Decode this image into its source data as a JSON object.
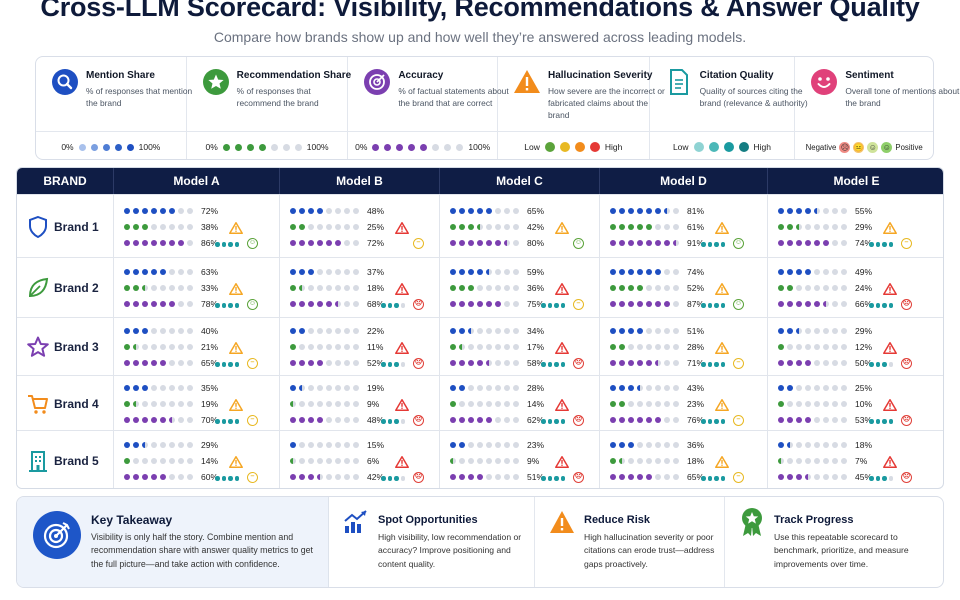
{
  "title": "Cross-LLM Scorecard: Visibility, Recommendations & Answer Quality",
  "subtitle": "Compare how brands show up and how well they’re answered across leading models.",
  "colors": {
    "navy": "#0f1d45",
    "mention": "#1e4fc2",
    "recommendation": "#3d9a3d",
    "accuracy": "#7b3fb0",
    "hallucination_high": "#e53935",
    "hallucination_mid": "#f5a623",
    "citation": "#1a9aa0",
    "sentiment_positive": "#5ba33a",
    "sentiment_neutral": "#e8b923",
    "sentiment_negative": "#e0413a",
    "empty_dot": "#d7dbe3"
  },
  "legend": [
    {
      "key": "mention",
      "icon": "search-icon",
      "title": "Mention Share",
      "desc": "% of responses that mention the brand",
      "scale_low": "0%",
      "scale_high": "100%"
    },
    {
      "key": "recommendation",
      "icon": "star-badge-icon",
      "title": "Recommendation Share",
      "desc": "% of responses that recommend the brand",
      "scale_low": "0%",
      "scale_high": "100%"
    },
    {
      "key": "accuracy",
      "icon": "target-icon",
      "title": "Accuracy",
      "desc": "% of factual statements about the brand that are correct",
      "scale_low": "0%",
      "scale_high": "100%"
    },
    {
      "key": "hallucination",
      "icon": "warning-icon",
      "title": "Hallucination Severity",
      "desc": "How severe are the incorrect or fabricated claims about the brand",
      "scale_low": "Low",
      "scale_high": "High"
    },
    {
      "key": "citation",
      "icon": "document-icon",
      "title": "Citation Quality",
      "desc": "Quality of sources citing the brand (relevance & authority)",
      "scale_low": "Low",
      "scale_high": "High"
    },
    {
      "key": "sentiment",
      "icon": "smiley-icon",
      "title": "Sentiment",
      "desc": "Overall tone of mentions about the brand",
      "scale_low": "Negative",
      "scale_high": "Positive"
    }
  ],
  "table": {
    "brand_header": "BRAND",
    "models": [
      "Model A",
      "Model B",
      "Model C",
      "Model D",
      "Model E"
    ],
    "brands": [
      {
        "name": "Brand 1",
        "icon": "shield-icon",
        "color": "#1e4fc2",
        "cells": [
          {
            "mention": "72%",
            "recommendation": "38%",
            "accuracy": "86%",
            "hallucination": "mid",
            "citation": 4,
            "sentiment": "positive"
          },
          {
            "mention": "48%",
            "recommendation": "25%",
            "accuracy": "72%",
            "hallucination": "high",
            "citation": 0,
            "sentiment": "neutral"
          },
          {
            "mention": "65%",
            "recommendation": "42%",
            "accuracy": "80%",
            "hallucination": "mid",
            "citation": 0,
            "sentiment": "positive"
          },
          {
            "mention": "81%",
            "recommendation": "61%",
            "accuracy": "91%",
            "hallucination": "mid",
            "citation": 4,
            "sentiment": "positive"
          },
          {
            "mention": "55%",
            "recommendation": "29%",
            "accuracy": "74%",
            "hallucination": "mid",
            "citation": 4,
            "sentiment": "neutral"
          }
        ]
      },
      {
        "name": "Brand 2",
        "icon": "leaf-icon",
        "color": "#3d9a3d",
        "cells": [
          {
            "mention": "63%",
            "recommendation": "33%",
            "accuracy": "78%",
            "hallucination": "mid",
            "citation": 4,
            "sentiment": "positive"
          },
          {
            "mention": "37%",
            "recommendation": "18%",
            "accuracy": "68%",
            "hallucination": "high",
            "citation": 3,
            "sentiment": "negative"
          },
          {
            "mention": "59%",
            "recommendation": "36%",
            "accuracy": "75%",
            "hallucination": "high",
            "citation": 4,
            "sentiment": "neutral"
          },
          {
            "mention": "74%",
            "recommendation": "52%",
            "accuracy": "87%",
            "hallucination": "mid",
            "citation": 4,
            "sentiment": "positive"
          },
          {
            "mention": "49%",
            "recommendation": "24%",
            "accuracy": "66%",
            "hallucination": "high",
            "citation": 4,
            "sentiment": "negative"
          }
        ]
      },
      {
        "name": "Brand 3",
        "icon": "star-icon",
        "color": "#7b3fb0",
        "cells": [
          {
            "mention": "40%",
            "recommendation": "21%",
            "accuracy": "65%",
            "hallucination": "mid",
            "citation": 4,
            "sentiment": "neutral"
          },
          {
            "mention": "22%",
            "recommendation": "11%",
            "accuracy": "52%",
            "hallucination": "high",
            "citation": 3,
            "sentiment": "negative"
          },
          {
            "mention": "34%",
            "recommendation": "17%",
            "accuracy": "58%",
            "hallucination": "high",
            "citation": 4,
            "sentiment": "negative"
          },
          {
            "mention": "51%",
            "recommendation": "28%",
            "accuracy": "71%",
            "hallucination": "mid",
            "citation": 4,
            "sentiment": "neutral"
          },
          {
            "mention": "29%",
            "recommendation": "12%",
            "accuracy": "50%",
            "hallucination": "high",
            "citation": 3,
            "sentiment": "negative"
          }
        ]
      },
      {
        "name": "Brand 4",
        "icon": "cart-icon",
        "color": "#f28c1c",
        "cells": [
          {
            "mention": "35%",
            "recommendation": "19%",
            "accuracy": "70%",
            "hallucination": "mid",
            "citation": 4,
            "sentiment": "neutral"
          },
          {
            "mention": "19%",
            "recommendation": "9%",
            "accuracy": "48%",
            "hallucination": "high",
            "citation": 3,
            "sentiment": "negative"
          },
          {
            "mention": "28%",
            "recommendation": "14%",
            "accuracy": "62%",
            "hallucination": "high",
            "citation": 4,
            "sentiment": "negative"
          },
          {
            "mention": "43%",
            "recommendation": "23%",
            "accuracy": "76%",
            "hallucination": "mid",
            "citation": 4,
            "sentiment": "neutral"
          },
          {
            "mention": "25%",
            "recommendation": "10%",
            "accuracy": "53%",
            "hallucination": "high",
            "citation": 4,
            "sentiment": "negative"
          }
        ]
      },
      {
        "name": "Brand 5",
        "icon": "building-icon",
        "color": "#1a9aa0",
        "cells": [
          {
            "mention": "29%",
            "recommendation": "14%",
            "accuracy": "60%",
            "hallucination": "mid",
            "citation": 4,
            "sentiment": "neutral"
          },
          {
            "mention": "15%",
            "recommendation": "6%",
            "accuracy": "42%",
            "hallucination": "high",
            "citation": 3,
            "sentiment": "negative"
          },
          {
            "mention": "23%",
            "recommendation": "9%",
            "accuracy": "51%",
            "hallucination": "high",
            "citation": 4,
            "sentiment": "negative"
          },
          {
            "mention": "36%",
            "recommendation": "18%",
            "accuracy": "65%",
            "hallucination": "mid",
            "citation": 4,
            "sentiment": "neutral"
          },
          {
            "mention": "18%",
            "recommendation": "7%",
            "accuracy": "45%",
            "hallucination": "high",
            "citation": 3,
            "sentiment": "negative"
          }
        ]
      }
    ]
  },
  "takeaway": {
    "title": "Key Takeaway",
    "body": "Visibility is only half the story. Combine mention and recommendation share with answer quality metrics to get the full picture—and take action with confidence."
  },
  "tips": [
    {
      "icon": "trend-chart-icon",
      "title": "Spot Opportunities",
      "body": "High visibility, low recommendation or accuracy? Improve positioning and content quality."
    },
    {
      "icon": "warning-icon",
      "title": "Reduce Risk",
      "body": "High hallucination severity or poor citations can erode trust—address gaps proactively."
    },
    {
      "icon": "award-ribbon-icon",
      "title": "Track Progress",
      "body": "Use this repeatable scorecard to benchmark, prioritize, and measure improvements over time."
    }
  ]
}
